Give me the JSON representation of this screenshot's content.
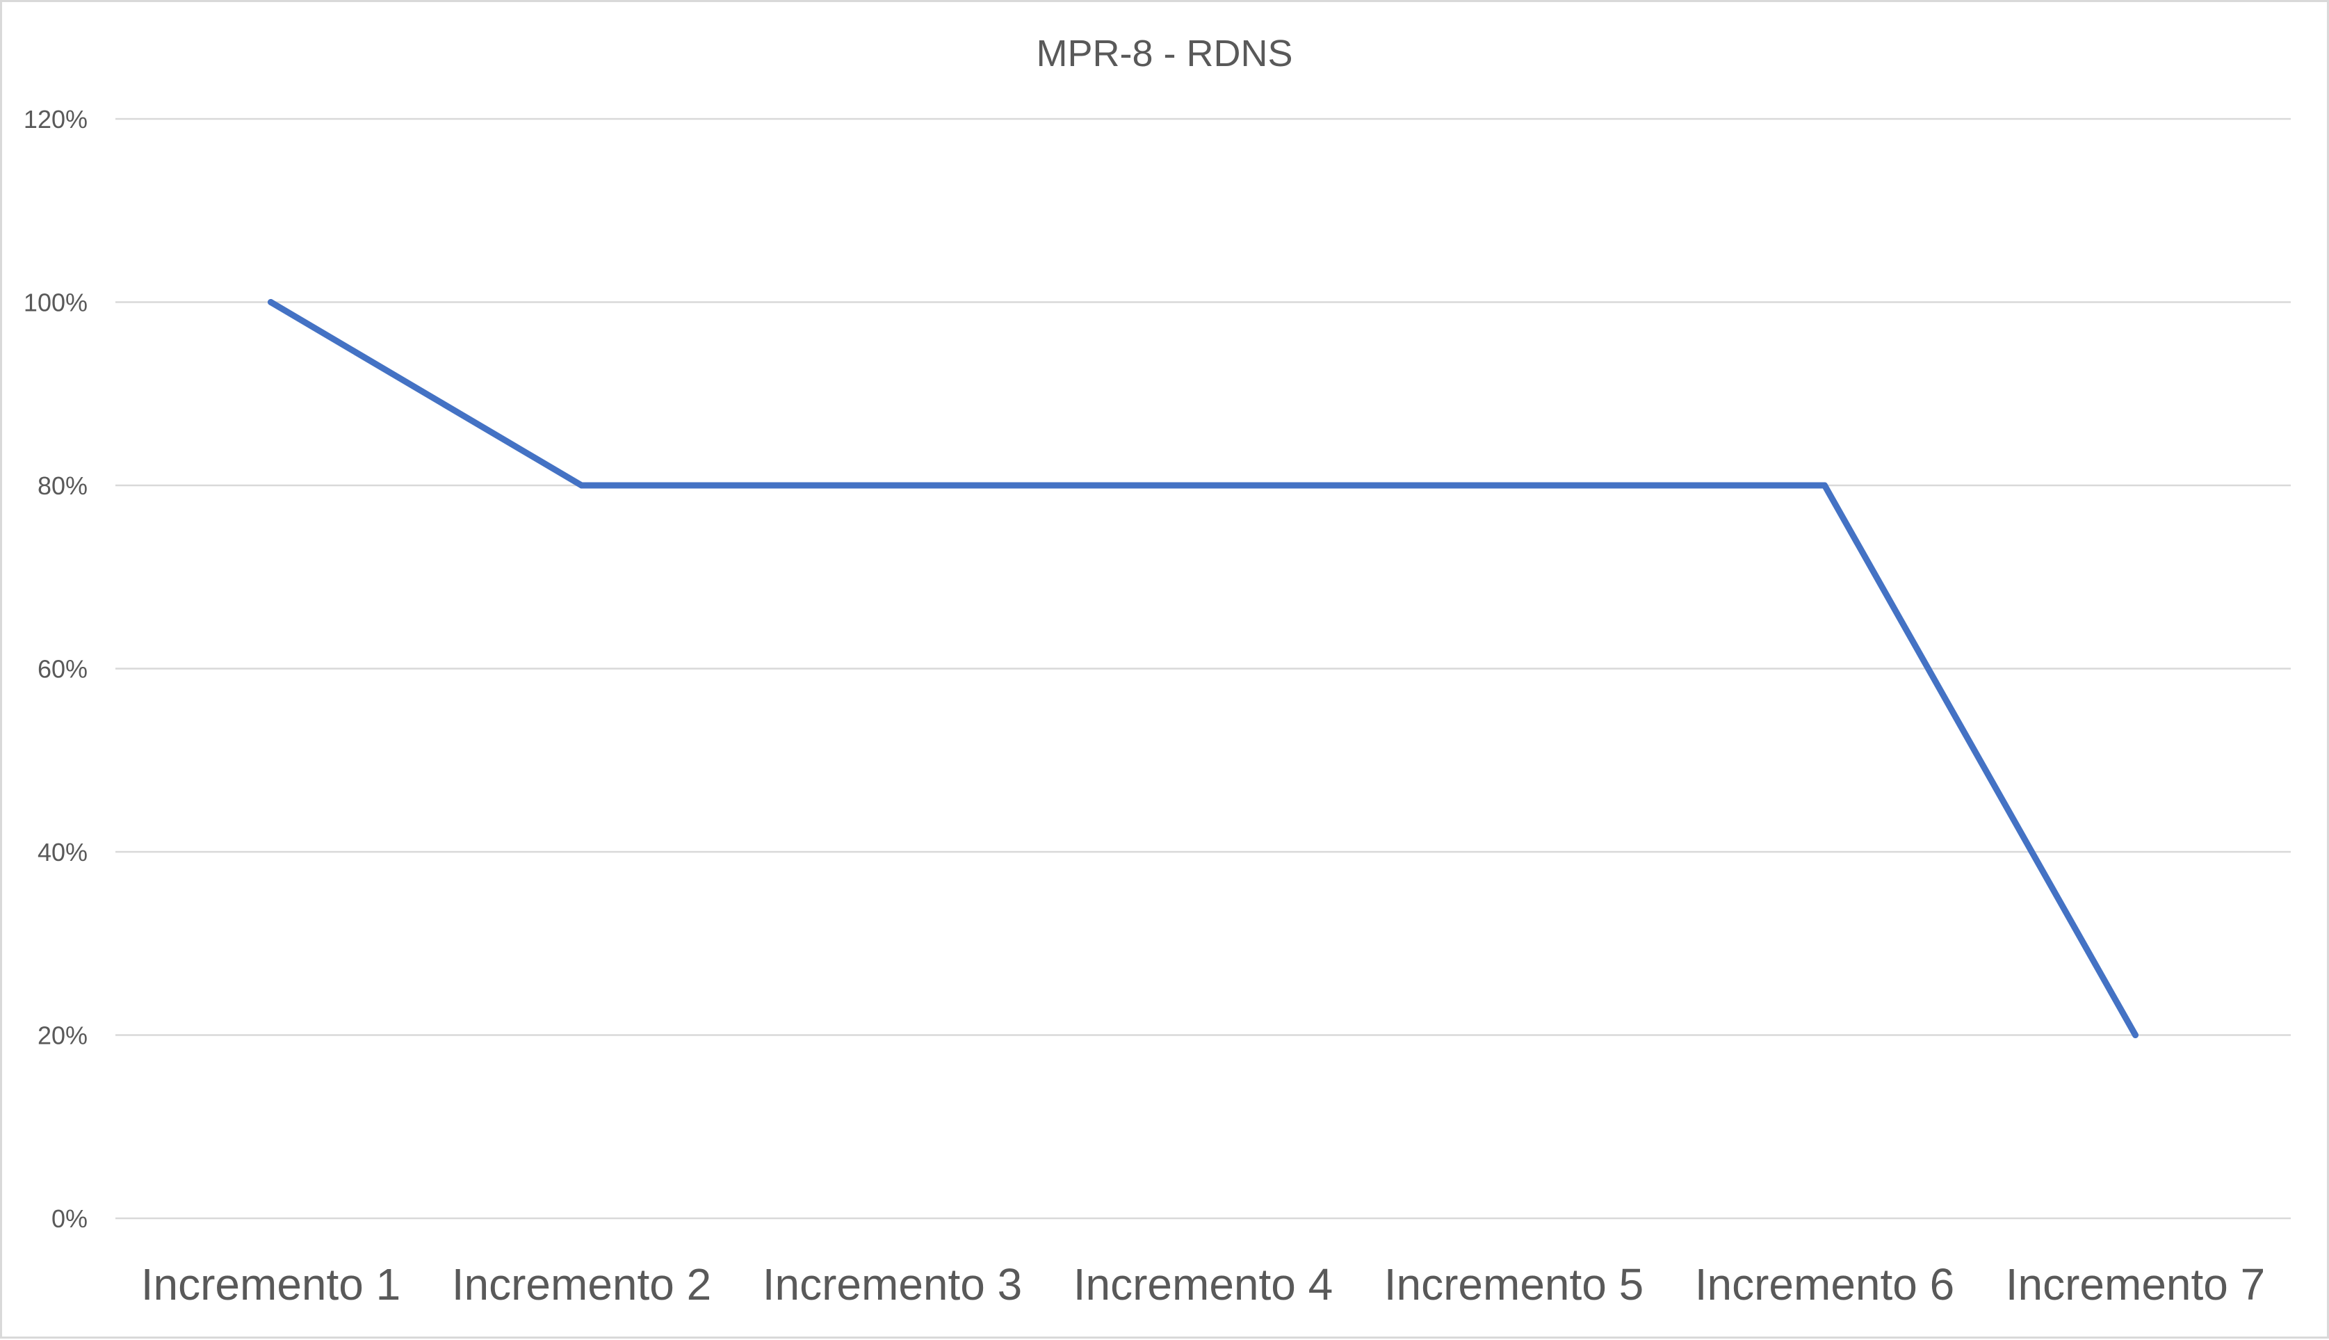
{
  "chart_data": {
    "type": "line",
    "title": "MPR-8 - RDNS",
    "xlabel": "",
    "ylabel": "",
    "categories": [
      "Incremento 1",
      "Incremento 2",
      "Incremento 3",
      "Incremento 4",
      "Incremento 5",
      "Incremento 6",
      "Incremento 7"
    ],
    "series": [
      {
        "values": [
          100,
          80,
          80,
          80,
          80,
          80,
          20
        ],
        "color": "#4472c4"
      }
    ],
    "ylim": [
      0,
      120
    ],
    "yticks": [
      0,
      20,
      40,
      60,
      80,
      100,
      120
    ],
    "ytick_labels": [
      "0%",
      "20%",
      "40%",
      "60%",
      "80%",
      "100%",
      "120%"
    ],
    "grid": true,
    "legend": "none",
    "colors": {
      "gridline": "#d9d9d9",
      "text": "#595959",
      "border": "#d9d9d9"
    }
  }
}
